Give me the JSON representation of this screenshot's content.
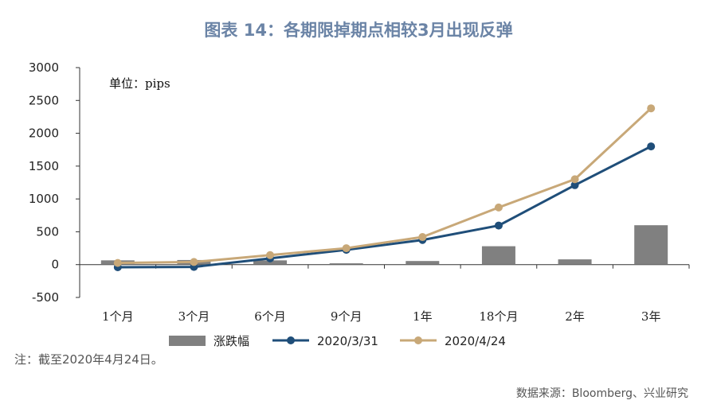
{
  "title": "图表 14：各期限掉期点相较3月出现反弹",
  "note": "注：截至2020年4月24日。",
  "source": "数据来源：Bloomberg、兴业研究",
  "chart_data": {
    "type": "bar",
    "unit_label": "单位：pips",
    "categories": [
      "1个月",
      "3个月",
      "6个月",
      "9个月",
      "1年",
      "18个月",
      "2年",
      "3年"
    ],
    "ylim": [
      -500,
      3000
    ],
    "yticks": [
      -500,
      0,
      500,
      1000,
      1500,
      2000,
      2500,
      3000
    ],
    "grid": false,
    "legend_position": "bottom",
    "series": [
      {
        "name": "涨跌幅",
        "kind": "bar",
        "color": "#808080",
        "values": [
          65,
          70,
          65,
          20,
          55,
          280,
          80,
          600
        ]
      },
      {
        "name": "2020/3/31",
        "kind": "line",
        "color": "#1f4e79",
        "values": [
          -40,
          -35,
          95,
          225,
          375,
          595,
          1210,
          1800
        ]
      },
      {
        "name": "2020/4/24",
        "kind": "line",
        "color": "#c8a878",
        "values": [
          25,
          40,
          145,
          250,
          420,
          870,
          1300,
          2380
        ]
      }
    ]
  }
}
